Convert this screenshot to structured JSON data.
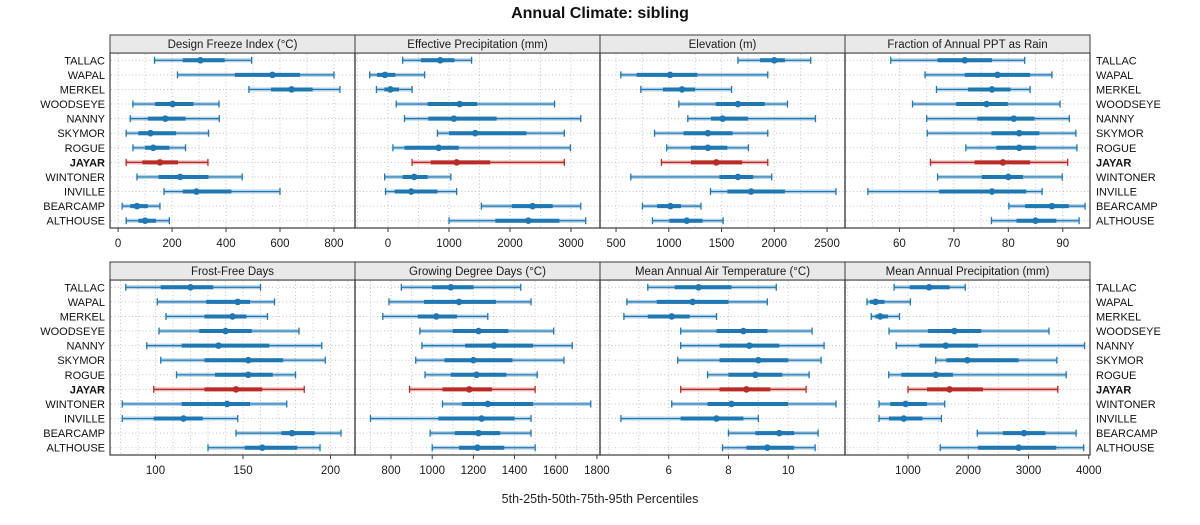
{
  "title": "Annual Climate: sibling",
  "caption": "5th-25th-50th-75th-95th Percentiles",
  "highlight_site": "JAYAR",
  "colors": {
    "series_blue": "#1f77b4",
    "series_blue_light": "rgba(31,119,180,0.32)",
    "series_red": "#bb2b26",
    "series_red_light": "rgba(187,43,38,0.32)",
    "panel_header_bg": "#e9e9e9",
    "panel_border": "#3a3a3a",
    "gridline": "#c4c4c4",
    "tick_text": "#1a1a1a"
  },
  "sites": [
    "TALLAC",
    "WAPAL",
    "MERKEL",
    "WOODSEYE",
    "NANNY",
    "SKYMOR",
    "ROGUE",
    "JAYAR",
    "WINTONER",
    "INVILLE",
    "BEARCAMP",
    "ALTHOUSE"
  ],
  "chart_data": {
    "type": "dot-whisker percentile trellis (2 rows x 4 cols)",
    "percentiles": [
      5,
      25,
      50,
      75,
      95
    ],
    "legend_note": "5th-25th-50th-75th-95th Percentiles",
    "grid": "dotted vertical at minor steps, dotted horizontal per site row",
    "panels": [
      {
        "title": "Design Freeze Index (°C)",
        "xlim": [
          -30,
          878
        ],
        "ticks": [
          0,
          200,
          400,
          600,
          800
        ],
        "grid_step": 100,
        "values": {
          "TALLAC": [
            135,
            240,
            305,
            395,
            495
          ],
          "WAPAL": [
            220,
            433,
            572,
            674,
            800
          ],
          "MERKEL": [
            485,
            567,
            643,
            721,
            822
          ],
          "WOODSEYE": [
            55,
            137,
            202,
            279,
            374
          ],
          "NANNY": [
            45,
            110,
            175,
            250,
            375
          ],
          "SKYMOR": [
            30,
            75,
            120,
            215,
            335
          ],
          "ROGUE": [
            55,
            100,
            130,
            190,
            250
          ],
          "JAYAR": [
            30,
            90,
            155,
            222,
            333
          ],
          "WINTONER": [
            70,
            150,
            230,
            335,
            460
          ],
          "INVILLE": [
            170,
            240,
            290,
            420,
            600
          ],
          "BEARCAMP": [
            15,
            45,
            70,
            110,
            155
          ],
          "ALTHOUSE": [
            30,
            75,
            100,
            140,
            190
          ]
        }
      },
      {
        "title": "Effective Precipitation (mm)",
        "xlim": [
          -541,
          3475
        ],
        "ticks": [
          0,
          1000,
          2000,
          3000
        ],
        "grid_step": 500,
        "values": {
          "TALLAC": [
            240,
            540,
            855,
            1090,
            1370
          ],
          "WAPAL": [
            -300,
            -180,
            -50,
            120,
            600
          ],
          "MERKEL": [
            -190,
            -60,
            40,
            180,
            395
          ],
          "WOODSEYE": [
            135,
            650,
            1175,
            1460,
            2730
          ],
          "NANNY": [
            270,
            660,
            1080,
            1780,
            3160
          ],
          "SKYMOR": [
            810,
            1000,
            1430,
            2270,
            2890
          ],
          "ROGUE": [
            80,
            270,
            830,
            1160,
            2990
          ],
          "JAYAR": [
            395,
            700,
            1125,
            1675,
            2890
          ],
          "WINTONER": [
            -55,
            240,
            430,
            650,
            1030
          ],
          "INVILLE": [
            -40,
            110,
            380,
            810,
            1125
          ],
          "BEARCAMP": [
            1530,
            2030,
            2370,
            2700,
            3160
          ],
          "ALTHOUSE": [
            1000,
            1760,
            2300,
            2810,
            3240
          ]
        }
      },
      {
        "title": "Elevation (m)",
        "xlim": [
          348,
          2670
        ],
        "ticks": [
          500,
          1000,
          1500,
          2000,
          2500
        ],
        "grid_step": 250,
        "values": {
          "TALLAC": [
            1655,
            1865,
            2000,
            2100,
            2345
          ],
          "WAPAL": [
            545,
            695,
            1012,
            1270,
            1938
          ],
          "MERKEL": [
            735,
            945,
            1125,
            1250,
            1595
          ],
          "WOODSEYE": [
            1095,
            1445,
            1655,
            1910,
            2125
          ],
          "NANNY": [
            1180,
            1400,
            1510,
            1750,
            2390
          ],
          "SKYMOR": [
            865,
            1140,
            1370,
            1605,
            1938
          ],
          "ROGUE": [
            980,
            1210,
            1370,
            1555,
            1755
          ],
          "JAYAR": [
            930,
            1210,
            1450,
            1695,
            1938
          ],
          "WINTONER": [
            640,
            1480,
            1655,
            1800,
            1975
          ],
          "INVILLE": [
            1395,
            1555,
            1780,
            2100,
            2585
          ],
          "BEARCAMP": [
            750,
            890,
            1015,
            1115,
            1305
          ],
          "ALTHOUSE": [
            845,
            1005,
            1170,
            1320,
            1515
          ]
        }
      },
      {
        "title": "Fraction of Annual PPT as Rain",
        "xlim": [
          50,
          95
        ],
        "ticks": [
          60,
          70,
          80,
          90
        ],
        "grid_step": 5,
        "values": {
          "TALLAC": [
            58.4,
            67,
            72,
            77,
            83
          ],
          "WAPAL": [
            64.7,
            72,
            78,
            84,
            88
          ],
          "MERKEL": [
            66.8,
            72.6,
            77,
            80.4,
            84
          ],
          "WOODSEYE": [
            62.4,
            70.4,
            76,
            79.9,
            89.5
          ],
          "NANNY": [
            65,
            74.3,
            81,
            84.8,
            91.2
          ],
          "SKYMOR": [
            65.1,
            76.9,
            82,
            85.7,
            92.4
          ],
          "ROGUE": [
            72.2,
            77.8,
            82,
            85.1,
            92.6
          ],
          "JAYAR": [
            65.7,
            73.8,
            79,
            84,
            90.9
          ],
          "WINTONER": [
            67,
            75.1,
            80,
            82.7,
            89.9
          ],
          "INVILLE": [
            54.2,
            67.3,
            77,
            83.3,
            86.2
          ],
          "BEARCAMP": [
            80.1,
            83.1,
            88,
            91.1,
            94.1
          ],
          "ALTHOUSE": [
            76.9,
            81.5,
            85,
            88.8,
            93
          ]
        }
      },
      {
        "title": "Frost-Free Days",
        "xlim": [
          74,
          214
        ],
        "ticks": [
          100,
          150,
          200
        ],
        "grid_step": 10,
        "values": {
          "TALLAC": [
            83,
            103,
            120,
            133,
            160
          ],
          "WAPAL": [
            101,
            129,
            147,
            154,
            168
          ],
          "MERKEL": [
            106,
            128,
            144,
            152,
            164
          ],
          "WOODSEYE": [
            102,
            125,
            140,
            155,
            182
          ],
          "NANNY": [
            95,
            115,
            136,
            165,
            195
          ],
          "SKYMOR": [
            103,
            128,
            153,
            173,
            197
          ],
          "ROGUE": [
            112,
            134,
            153,
            167,
            180
          ],
          "JAYAR": [
            99,
            128,
            146,
            161,
            185
          ],
          "WINTONER": [
            81,
            115,
            141,
            154,
            175
          ],
          "INVILLE": [
            81,
            99,
            116,
            127,
            147
          ],
          "BEARCAMP": [
            146,
            172,
            178,
            191,
            206
          ],
          "ALTHOUSE": [
            130,
            151,
            161,
            181,
            194
          ]
        }
      },
      {
        "title": "Growing Degree Days (°C)",
        "xlim": [
          625,
          1815
        ],
        "ticks": [
          800,
          1000,
          1200,
          1400,
          1600,
          1800
        ],
        "grid_step": 100,
        "values": {
          "TALLAC": [
            850,
            1000,
            1090,
            1200,
            1430
          ],
          "WAPAL": [
            790,
            960,
            1130,
            1310,
            1480
          ],
          "MERKEL": [
            760,
            930,
            1020,
            1120,
            1270
          ],
          "WOODSEYE": [
            940,
            1100,
            1225,
            1370,
            1590
          ],
          "NANNY": [
            950,
            1160,
            1300,
            1490,
            1680
          ],
          "SKYMOR": [
            920,
            1060,
            1200,
            1390,
            1640
          ],
          "ROGUE": [
            965,
            1090,
            1215,
            1360,
            1510
          ],
          "JAYAR": [
            890,
            1050,
            1180,
            1290,
            1500
          ],
          "WINTONER": [
            1050,
            1145,
            1270,
            1490,
            1770
          ],
          "INVILLE": [
            700,
            1030,
            1240,
            1400,
            1480
          ],
          "BEARCAMP": [
            990,
            1110,
            1225,
            1330,
            1480
          ],
          "ALTHOUSE": [
            1000,
            1130,
            1220,
            1350,
            1500
          ]
        }
      },
      {
        "title": "Mean Annual Air Temperature (°C)",
        "xlim": [
          3.7,
          11.9
        ],
        "ticks": [
          6,
          8,
          10
        ],
        "grid_step": 1,
        "values": {
          "TALLAC": [
            5.3,
            6.2,
            7.0,
            8.1,
            9.6
          ],
          "WAPAL": [
            4.6,
            5.6,
            6.8,
            8.0,
            9.3
          ],
          "MERKEL": [
            4.5,
            5.3,
            6.1,
            6.7,
            7.6
          ],
          "WOODSEYE": [
            6.4,
            7.6,
            8.5,
            9.3,
            10.8
          ],
          "NANNY": [
            6.4,
            7.7,
            8.7,
            9.7,
            11.2
          ],
          "SKYMOR": [
            6.3,
            7.7,
            9.0,
            10.0,
            11.1
          ],
          "ROGUE": [
            7.3,
            8.0,
            8.9,
            9.8,
            10.7
          ],
          "JAYAR": [
            6.4,
            7.7,
            8.6,
            9.4,
            10.6
          ],
          "WINTONER": [
            6.1,
            7.3,
            8.1,
            10.0,
            11.6
          ],
          "INVILLE": [
            4.4,
            6.4,
            7.6,
            8.5,
            9.0
          ],
          "BEARCAMP": [
            8.0,
            8.9,
            9.7,
            10.2,
            11.0
          ],
          "ALTHOUSE": [
            7.8,
            8.6,
            9.3,
            10.2,
            10.9
          ]
        }
      },
      {
        "title": "Mean Annual Precipitation (mm)",
        "xlim": [
          -45,
          4020
        ],
        "ticks": [
          1000,
          2000,
          3000,
          4000
        ],
        "grid_step": 500,
        "values": {
          "TALLAC": [
            770,
            1030,
            1350,
            1690,
            1950
          ],
          "WAPAL": [
            320,
            370,
            460,
            610,
            1040
          ],
          "MERKEL": [
            390,
            460,
            540,
            670,
            860
          ],
          "WOODSEYE": [
            685,
            1330,
            1770,
            2215,
            3340
          ],
          "NANNY": [
            805,
            1190,
            1625,
            2160,
            3930
          ],
          "SKYMOR": [
            1460,
            1635,
            1985,
            2835,
            3470
          ],
          "ROGUE": [
            680,
            890,
            1460,
            1745,
            3625
          ],
          "JAYAR": [
            1000,
            1315,
            1690,
            2245,
            3485
          ],
          "WINTONER": [
            520,
            705,
            960,
            1315,
            1610
          ],
          "INVILLE": [
            520,
            685,
            930,
            1240,
            1555
          ],
          "BEARCAMP": [
            2150,
            2575,
            2925,
            3280,
            3790
          ],
          "ALTHOUSE": [
            1535,
            2160,
            2835,
            3460,
            3915
          ]
        }
      }
    ]
  }
}
